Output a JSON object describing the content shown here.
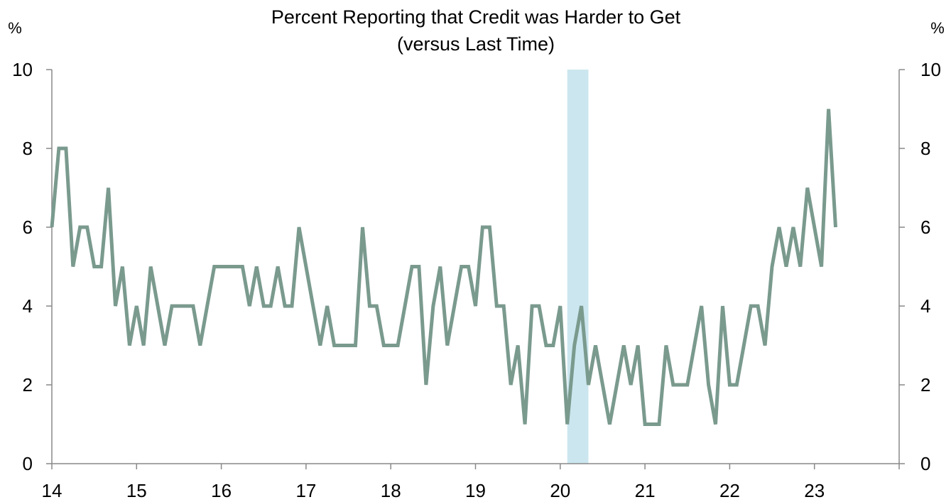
{
  "chart_data": {
    "type": "line",
    "title": "Percent Reporting that Credit was Harder to Get",
    "subtitle": "(versus Last Time)",
    "y_unit_left": "%",
    "y_unit_right": "%",
    "xlabel": "",
    "ylabel": "",
    "ylim": [
      0,
      10
    ],
    "yticks": [
      "0",
      "2",
      "4",
      "6",
      "8",
      "10"
    ],
    "xlim": [
      2014,
      2024
    ],
    "xticks": [
      "14",
      "15",
      "16",
      "17",
      "18",
      "19",
      "20",
      "21",
      "22",
      "23"
    ],
    "grid": false,
    "legend": "none",
    "shaded_regions": [
      {
        "x_start": 2020.083,
        "x_end": 2020.333,
        "color": "#cce6ef"
      }
    ],
    "series": [
      {
        "color": "#7a9a8e",
        "points": [
          [
            2014.0,
            6
          ],
          [
            2014.083,
            8
          ],
          [
            2014.167,
            8
          ],
          [
            2014.25,
            5
          ],
          [
            2014.333,
            6
          ],
          [
            2014.417,
            6
          ],
          [
            2014.5,
            5
          ],
          [
            2014.583,
            5
          ],
          [
            2014.667,
            7
          ],
          [
            2014.75,
            4
          ],
          [
            2014.833,
            5
          ],
          [
            2014.917,
            3
          ],
          [
            2015.0,
            4
          ],
          [
            2015.083,
            3
          ],
          [
            2015.167,
            5
          ],
          [
            2015.25,
            4
          ],
          [
            2015.333,
            3
          ],
          [
            2015.417,
            4
          ],
          [
            2015.5,
            4
          ],
          [
            2015.583,
            4
          ],
          [
            2015.667,
            4
          ],
          [
            2015.75,
            3
          ],
          [
            2015.833,
            4
          ],
          [
            2015.917,
            5
          ],
          [
            2016.0,
            5
          ],
          [
            2016.083,
            5
          ],
          [
            2016.167,
            5
          ],
          [
            2016.25,
            5
          ],
          [
            2016.333,
            4
          ],
          [
            2016.417,
            5
          ],
          [
            2016.5,
            4
          ],
          [
            2016.583,
            4
          ],
          [
            2016.667,
            5
          ],
          [
            2016.75,
            4
          ],
          [
            2016.833,
            4
          ],
          [
            2016.917,
            6
          ],
          [
            2017.0,
            5
          ],
          [
            2017.083,
            4
          ],
          [
            2017.167,
            3
          ],
          [
            2017.25,
            4
          ],
          [
            2017.333,
            3
          ],
          [
            2017.417,
            3
          ],
          [
            2017.5,
            3
          ],
          [
            2017.583,
            3
          ],
          [
            2017.667,
            6
          ],
          [
            2017.75,
            4
          ],
          [
            2017.833,
            4
          ],
          [
            2017.917,
            3
          ],
          [
            2018.0,
            3
          ],
          [
            2018.083,
            3
          ],
          [
            2018.167,
            4
          ],
          [
            2018.25,
            5
          ],
          [
            2018.333,
            5
          ],
          [
            2018.417,
            2
          ],
          [
            2018.5,
            4
          ],
          [
            2018.583,
            5
          ],
          [
            2018.667,
            3
          ],
          [
            2018.75,
            4
          ],
          [
            2018.833,
            5
          ],
          [
            2018.917,
            5
          ],
          [
            2019.0,
            4
          ],
          [
            2019.083,
            6
          ],
          [
            2019.167,
            6
          ],
          [
            2019.25,
            4
          ],
          [
            2019.333,
            4
          ],
          [
            2019.417,
            2
          ],
          [
            2019.5,
            3
          ],
          [
            2019.583,
            1
          ],
          [
            2019.667,
            4
          ],
          [
            2019.75,
            4
          ],
          [
            2019.833,
            3
          ],
          [
            2019.917,
            3
          ],
          [
            2020.0,
            4
          ],
          [
            2020.083,
            1
          ],
          [
            2020.167,
            3
          ],
          [
            2020.25,
            4
          ],
          [
            2020.333,
            2
          ],
          [
            2020.417,
            3
          ],
          [
            2020.5,
            2
          ],
          [
            2020.583,
            1
          ],
          [
            2020.667,
            2
          ],
          [
            2020.75,
            3
          ],
          [
            2020.833,
            2
          ],
          [
            2020.917,
            3
          ],
          [
            2021.0,
            1
          ],
          [
            2021.083,
            1
          ],
          [
            2021.167,
            1
          ],
          [
            2021.25,
            3
          ],
          [
            2021.333,
            2
          ],
          [
            2021.417,
            2
          ],
          [
            2021.5,
            2
          ],
          [
            2021.583,
            3
          ],
          [
            2021.667,
            4
          ],
          [
            2021.75,
            2
          ],
          [
            2021.833,
            1
          ],
          [
            2021.917,
            4
          ],
          [
            2022.0,
            2
          ],
          [
            2022.083,
            2
          ],
          [
            2022.167,
            3
          ],
          [
            2022.25,
            4
          ],
          [
            2022.333,
            4
          ],
          [
            2022.417,
            3
          ],
          [
            2022.5,
            5
          ],
          [
            2022.583,
            6
          ],
          [
            2022.667,
            5
          ],
          [
            2022.75,
            6
          ],
          [
            2022.833,
            5
          ],
          [
            2022.917,
            7
          ],
          [
            2023.0,
            6
          ],
          [
            2023.083,
            5
          ],
          [
            2023.167,
            9
          ],
          [
            2023.25,
            6
          ]
        ]
      }
    ]
  }
}
